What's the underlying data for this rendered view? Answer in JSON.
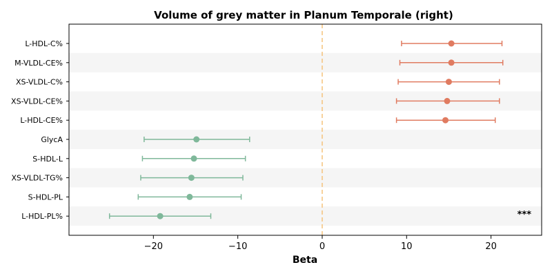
{
  "chart_data": {
    "type": "scatter",
    "title": "Volume of grey matter in Planum Temporale (right)",
    "xlabel": "Beta",
    "ylabel": "",
    "xlim": [
      -30,
      26
    ],
    "xticks": [
      -20,
      -10,
      0,
      10,
      20
    ],
    "xtick_labels": [
      "−20",
      "−10",
      "0",
      "10",
      "20"
    ],
    "reference_line": 0,
    "grid": false,
    "colors": {
      "positive": "#e07b60",
      "negative": "#7fb89a",
      "reference": "#f5c27a",
      "band": "#f5f5f5"
    },
    "points": [
      {
        "label": "L-HDL-C%",
        "beta": 15.3,
        "ci_low": 9.4,
        "ci_high": 21.3
      },
      {
        "label": "M-VLDL-CE%",
        "beta": 15.3,
        "ci_low": 9.2,
        "ci_high": 21.4
      },
      {
        "label": "XS-VLDL-C%",
        "beta": 15.0,
        "ci_low": 9.0,
        "ci_high": 21.0
      },
      {
        "label": "XS-VLDL-CE%",
        "beta": 14.8,
        "ci_low": 8.8,
        "ci_high": 21.0
      },
      {
        "label": "L-HDL-CE%",
        "beta": 14.6,
        "ci_low": 8.8,
        "ci_high": 20.5
      },
      {
        "label": "GlycA",
        "beta": -14.9,
        "ci_low": -21.1,
        "ci_high": -8.6
      },
      {
        "label": "S-HDL-L",
        "beta": -15.2,
        "ci_low": -21.3,
        "ci_high": -9.1
      },
      {
        "label": "XS-VLDL-TG%",
        "beta": -15.5,
        "ci_low": -21.5,
        "ci_high": -9.4
      },
      {
        "label": "S-HDL-PL",
        "beta": -15.7,
        "ci_low": -21.8,
        "ci_high": -9.6
      },
      {
        "label": "L-HDL-PL%",
        "beta": -19.2,
        "ci_low": -25.2,
        "ci_high": -13.2
      }
    ],
    "annotations": [
      {
        "row": 9,
        "text": "***"
      }
    ]
  }
}
